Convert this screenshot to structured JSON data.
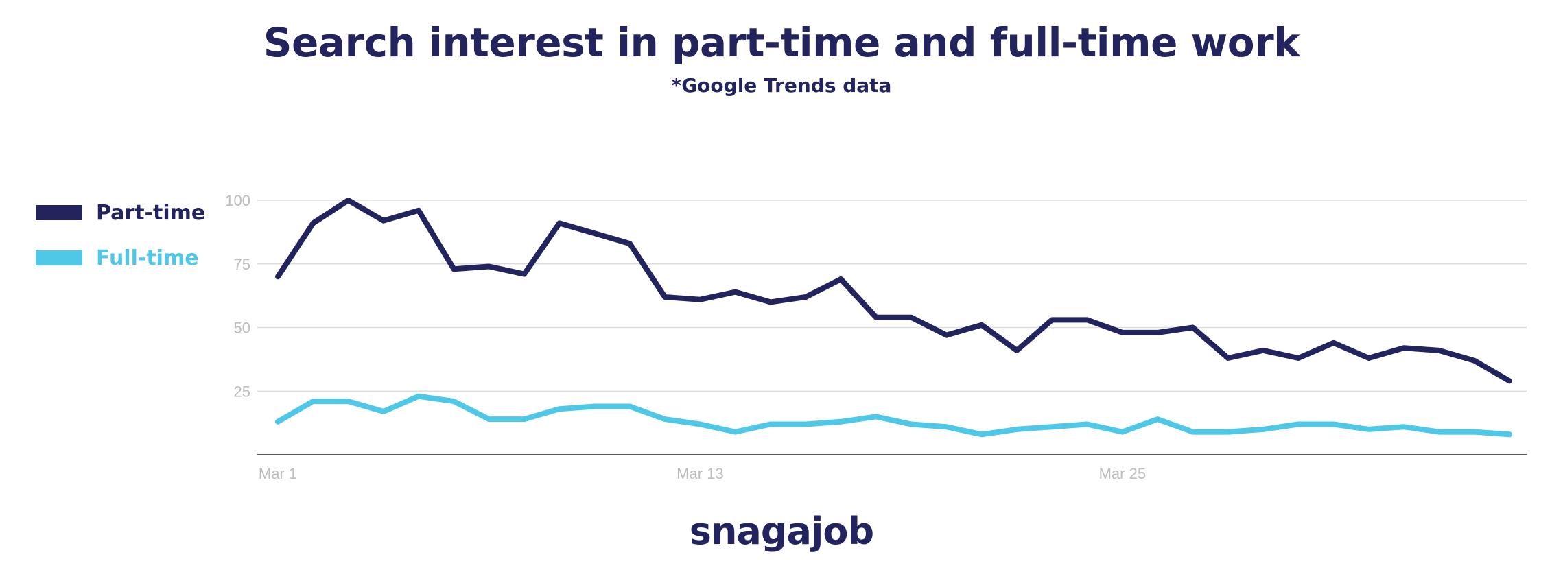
{
  "logo_text": "snagajob",
  "colors": {
    "part_time": "#23235e",
    "full_time": "#4fc8e8",
    "grid": "#dddddd",
    "tick": "#bdbdbd"
  },
  "chart_data": {
    "type": "line",
    "title": "Search interest in part-time and full-time work",
    "subtitle": "*Google Trends data",
    "xlabel": "",
    "ylabel": "",
    "x_tick_labels": [
      "Mar 1",
      "Mar 13",
      "Mar 25"
    ],
    "x_tick_index": [
      0,
      12,
      24
    ],
    "y_ticks": [
      25,
      50,
      75,
      100
    ],
    "ylim": [
      0,
      100
    ],
    "grid": true,
    "legend_position": "left",
    "series": [
      {
        "name": "Part-time",
        "color": "#23235e",
        "values": [
          70,
          91,
          100,
          92,
          96,
          73,
          74,
          71,
          91,
          87,
          83,
          62,
          61,
          64,
          60,
          62,
          69,
          54,
          54,
          47,
          51,
          41,
          53,
          53,
          48,
          48,
          50,
          38,
          41,
          38,
          44,
          38,
          42,
          41,
          37,
          29
        ]
      },
      {
        "name": "Full-time",
        "color": "#4fc8e8",
        "values": [
          13,
          21,
          21,
          17,
          23,
          21,
          14,
          14,
          18,
          19,
          19,
          14,
          12,
          9,
          12,
          12,
          13,
          15,
          12,
          11,
          8,
          10,
          11,
          12,
          9,
          14,
          9,
          9,
          10,
          12,
          12,
          10,
          11,
          9,
          9,
          8
        ]
      }
    ]
  }
}
